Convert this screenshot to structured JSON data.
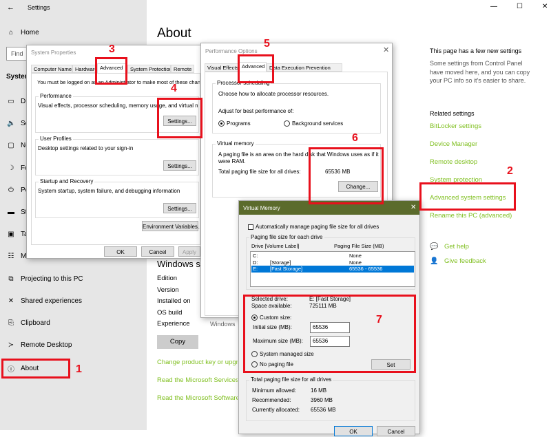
{
  "window": {
    "title": "Settings",
    "minimize": "—",
    "maximize": "☐",
    "close": "✕"
  },
  "sidebar": {
    "home": "Home",
    "search_placeholder": "Find",
    "section": "System",
    "items": [
      {
        "label": "Display",
        "icon": "monitor-icon",
        "glyph": "▭"
      },
      {
        "label": "Sound",
        "icon": "speaker-icon",
        "glyph": "🔈"
      },
      {
        "label": "Notifications",
        "icon": "notification-icon",
        "glyph": "▢"
      },
      {
        "label": "Focus assist",
        "icon": "moon-icon",
        "glyph": "☽"
      },
      {
        "label": "Power & sleep",
        "icon": "power-icon",
        "glyph": "⏻"
      },
      {
        "label": "Storage",
        "icon": "storage-icon",
        "glyph": "▬"
      },
      {
        "label": "Tablet",
        "icon": "tablet-icon",
        "glyph": "▣"
      },
      {
        "label": "Multitasking",
        "icon": "multitasking-icon",
        "glyph": "☷"
      },
      {
        "label": "Projecting to this PC",
        "icon": "projector-icon",
        "glyph": "⧉"
      },
      {
        "label": "Shared experiences",
        "icon": "shared-icon",
        "glyph": "✕"
      },
      {
        "label": "Clipboard",
        "icon": "clipboard-icon",
        "glyph": "⎘"
      },
      {
        "label": "Remote Desktop",
        "icon": "remote-desktop-icon",
        "glyph": "≻"
      },
      {
        "label": "About",
        "icon": "info-icon",
        "glyph": "ⓘ"
      }
    ]
  },
  "main": {
    "title": "About",
    "spec_heading": "Windows s",
    "specs": [
      "Edition",
      "Version",
      "Installed on",
      "OS build",
      "Experience"
    ],
    "experience_value": "Windows",
    "copy": "Copy",
    "links": [
      "Change product key or upgr",
      "Read the Microsoft Services",
      "Read the Microsoft Software"
    ]
  },
  "right": {
    "new_title": "This page has a few new settings",
    "new_text": [
      "Some settings from Control Panel",
      "have moved here, and you can copy",
      "your PC info so it's easier to share."
    ],
    "related_title": "Related settings",
    "related": [
      "BitLocker settings",
      "Device Manager",
      "Remote desktop",
      "System protection",
      "Advanced system settings",
      "Rename this PC (advanced)"
    ],
    "help": "Get help",
    "feedback": "Give feedback"
  },
  "sysprops": {
    "title": "System Properties",
    "tabs": [
      "Computer Name",
      "Hardware",
      "Advanced",
      "System Protection",
      "Remote"
    ],
    "admin_note": "You must be logged on as an Administrator to make most of these changes.",
    "perf_label": "Performance",
    "perf_text": "Visual effects, processor scheduling, memory usage, and virtual memory",
    "profiles_label": "User Profiles",
    "profiles_text": "Desktop settings related to your sign-in",
    "startup_label": "Startup and Recovery",
    "startup_text": "System startup, system failure, and debugging information",
    "settings": "Settings...",
    "env": "Environment Variables...",
    "ok": "OK",
    "cancel": "Cancel",
    "apply": "Apply"
  },
  "perfopts": {
    "title": "Performance Options",
    "tabs": [
      "Visual Effects",
      "Advanced",
      "Data Execution Prevention"
    ],
    "sched_label": "Processor scheduling",
    "sched_text": "Choose how to allocate processor resources.",
    "adjust": "Adjust for best performance of:",
    "programs": "Programs",
    "background": "Background services",
    "vm_label": "Virtual memory",
    "vm_text1": "A paging file is an area on the hard disk that Windows uses as if it",
    "vm_text2": "were RAM.",
    "total_label": "Total paging file size for all drives:",
    "total_value": "65536 MB",
    "change": "Change..."
  },
  "vmem": {
    "title": "Virtual Memory",
    "auto": "Automatically manage paging file size for all drives",
    "each_label": "Paging file size for each drive",
    "col_drive": "Drive  [Volume Label]",
    "col_size": "Paging File Size (MB)",
    "drives": [
      {
        "drive": "C:",
        "label": "",
        "size": "None"
      },
      {
        "drive": "D:",
        "label": "[Storage]",
        "size": "None"
      },
      {
        "drive": "E:",
        "label": "[Fast Storage]",
        "size": "65536 - 65536",
        "selected": true
      }
    ],
    "selected_label": "Selected drive:",
    "selected_value": "E:  [Fast Storage]",
    "space_label": "Space available:",
    "space_value": "725111 MB",
    "custom": "Custom size:",
    "initial_label": "Initial size (MB):",
    "initial_value": "65536",
    "max_label": "Maximum size (MB):",
    "max_value": "65536",
    "system_managed": "System managed size",
    "no_paging": "No paging file",
    "set": "Set",
    "total_label": "Total paging file size for all drives",
    "min_label": "Minimum allowed:",
    "min_value": "16 MB",
    "rec_label": "Recommended:",
    "rec_value": "3960 MB",
    "cur_label": "Currently allocated:",
    "cur_value": "65536 MB",
    "ok": "OK",
    "cancel": "Cancel"
  },
  "annotations": [
    "1",
    "2",
    "3",
    "4",
    "5",
    "6",
    "7"
  ],
  "colors": {
    "accent_link": "#7fbf1f",
    "annotation": "#e8101c",
    "vm_titlebar": "#5b6b2c",
    "selection": "#0078d7"
  }
}
